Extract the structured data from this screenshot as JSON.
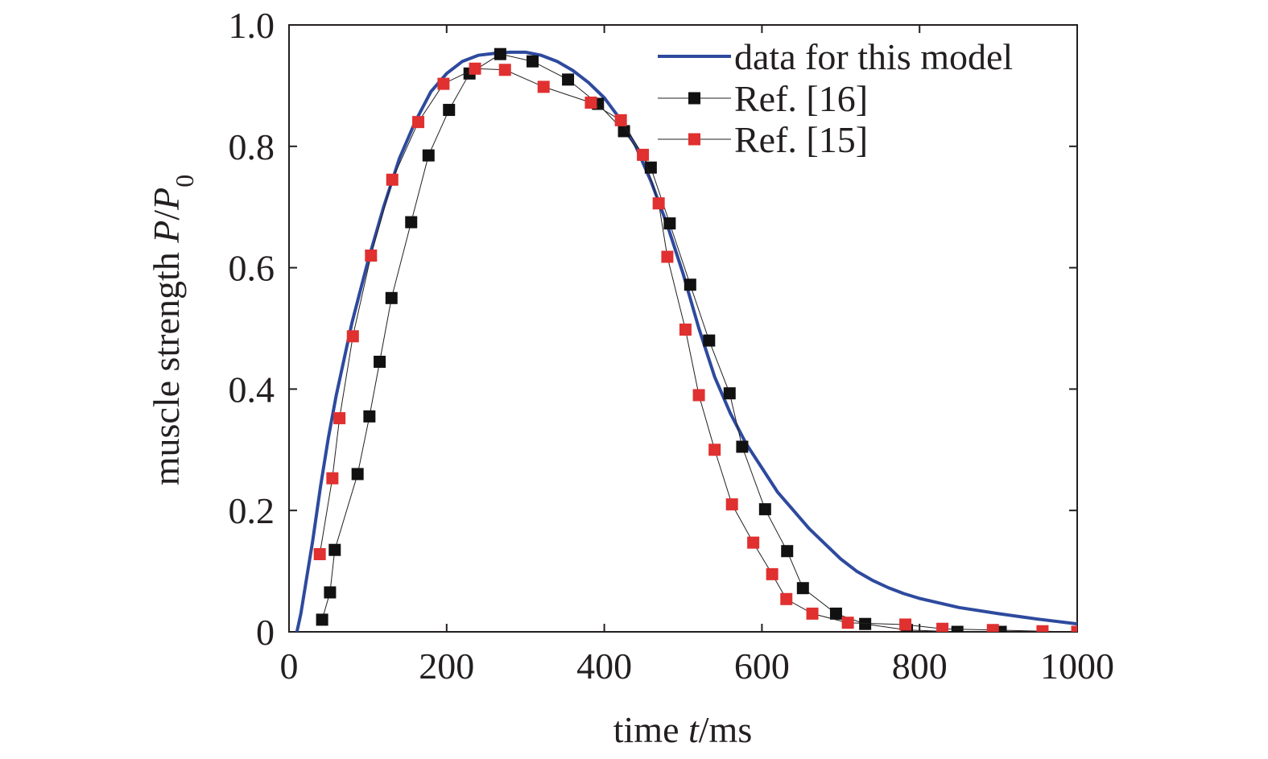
{
  "chart_data": {
    "type": "line",
    "title": "",
    "xlabel": {
      "prefix": "time ",
      "variable": "t",
      "suffix": "/ms"
    },
    "ylabel": {
      "prefix": "muscle strength ",
      "numerator": "P",
      "slash": "/",
      "denominator": "P",
      "subscript": "0"
    },
    "xlim": [
      0,
      1000
    ],
    "ylim": [
      0,
      1.0
    ],
    "x_ticks": [
      0,
      200,
      400,
      600,
      800,
      1000
    ],
    "x_tick_labels": [
      "0",
      "200",
      "400",
      "600",
      "800",
      "1000"
    ],
    "y_ticks": [
      0,
      0.2,
      0.4,
      0.6,
      0.8,
      1.0
    ],
    "y_tick_labels": [
      "0",
      "0.2",
      "0.4",
      "0.6",
      "0.8",
      "1.0"
    ],
    "grid": false,
    "legend_position": "top-right",
    "series": [
      {
        "name": "data for this model",
        "style": "line",
        "color": "#2e4a9e",
        "x": [
          10,
          15,
          20,
          30,
          40,
          50,
          60,
          70,
          80,
          90,
          100,
          120,
          140,
          160,
          180,
          200,
          220,
          240,
          260,
          280,
          300,
          320,
          340,
          360,
          380,
          400,
          420,
          440,
          460,
          480,
          500,
          520,
          540,
          560,
          580,
          600,
          620,
          640,
          660,
          680,
          700,
          720,
          740,
          760,
          780,
          800,
          850,
          900,
          950,
          1000
        ],
        "y": [
          0.0,
          0.03,
          0.07,
          0.15,
          0.24,
          0.32,
          0.39,
          0.45,
          0.51,
          0.56,
          0.61,
          0.7,
          0.78,
          0.84,
          0.89,
          0.92,
          0.94,
          0.95,
          0.953,
          0.955,
          0.955,
          0.95,
          0.94,
          0.925,
          0.905,
          0.88,
          0.845,
          0.8,
          0.74,
          0.67,
          0.59,
          0.5,
          0.42,
          0.36,
          0.31,
          0.27,
          0.23,
          0.2,
          0.17,
          0.145,
          0.12,
          0.1,
          0.085,
          0.073,
          0.063,
          0.055,
          0.04,
          0.03,
          0.021,
          0.013
        ]
      },
      {
        "name": "Ref. [16]",
        "style": "line-markers",
        "color": "#111111",
        "x": [
          42,
          52,
          58,
          87,
          102,
          115,
          130,
          155,
          177,
          203,
          229,
          268,
          309,
          354,
          392,
          425,
          459,
          483,
          509,
          533,
          559,
          575,
          604,
          632,
          652,
          694,
          731,
          784,
          848,
          903
        ],
        "y": [
          0.02,
          0.065,
          0.135,
          0.26,
          0.355,
          0.445,
          0.55,
          0.675,
          0.785,
          0.86,
          0.92,
          0.952,
          0.94,
          0.91,
          0.87,
          0.825,
          0.765,
          0.673,
          0.572,
          0.48,
          0.393,
          0.305,
          0.202,
          0.133,
          0.072,
          0.03,
          0.013,
          0.003,
          0.0,
          0.0
        ]
      },
      {
        "name": "Ref. [15]",
        "style": "line-markers",
        "color": "#e03030",
        "x": [
          39,
          55,
          64,
          81,
          104,
          131,
          164,
          196,
          236,
          274,
          323,
          383,
          421,
          449,
          469,
          480,
          503,
          520,
          540,
          562,
          589,
          613,
          631,
          664,
          709,
          782,
          829,
          893,
          956,
          1000
        ],
        "y": [
          0.128,
          0.253,
          0.352,
          0.487,
          0.62,
          0.745,
          0.84,
          0.903,
          0.928,
          0.926,
          0.898,
          0.872,
          0.843,
          0.786,
          0.706,
          0.618,
          0.498,
          0.39,
          0.3,
          0.21,
          0.147,
          0.095,
          0.054,
          0.03,
          0.015,
          0.012,
          0.005,
          0.003,
          0.001,
          0.0
        ]
      }
    ]
  }
}
